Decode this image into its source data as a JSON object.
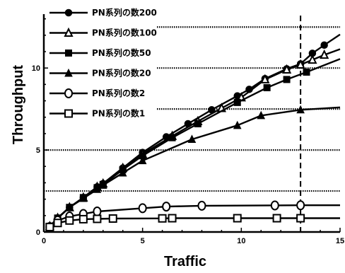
{
  "chart_data": {
    "type": "line",
    "xlabel": "Traffic",
    "ylabel": "Throughput",
    "xlim": [
      0,
      15
    ],
    "ylim": [
      0,
      13.2
    ],
    "x_ticks": [
      "0",
      "5",
      "10",
      "15"
    ],
    "y_ticks": [
      "0",
      "5",
      "10"
    ],
    "reference_line_x": 13,
    "dotted_gridlines_y": [
      2.5,
      5,
      7.5,
      10,
      12.5
    ],
    "legend_position": "top-left",
    "series": [
      {
        "name": "PN系列の数200",
        "marker": "filled-circle",
        "x": [
          0.3,
          0.7,
          1.3,
          2.0,
          2.7,
          3.0,
          4.0,
          5.0,
          6.2,
          7.3,
          8.5,
          9.8,
          10.4,
          11.2,
          12.3,
          13.0,
          13.6,
          14.2,
          15.0
        ],
        "y": [
          0.35,
          0.85,
          1.5,
          2.1,
          2.75,
          2.95,
          3.9,
          4.85,
          5.8,
          6.6,
          7.45,
          8.3,
          8.7,
          9.35,
          9.95,
          10.25,
          10.9,
          11.4,
          12.05
        ]
      },
      {
        "name": "PN系列の数100",
        "marker": "open-triangle",
        "x": [
          0.3,
          0.7,
          1.3,
          2.0,
          2.7,
          3.0,
          4.0,
          5.0,
          6.5,
          7.8,
          9.0,
          10.0,
          11.2,
          12.3,
          13.0,
          13.6,
          14.2,
          15.0
        ],
        "y": [
          0.35,
          0.85,
          1.5,
          2.1,
          2.75,
          2.95,
          3.9,
          4.75,
          5.85,
          6.75,
          7.55,
          8.2,
          9.3,
          9.9,
          10.2,
          10.5,
          10.8,
          11.15
        ]
      },
      {
        "name": "PN系列の数50",
        "marker": "filled-square",
        "x": [
          0.3,
          0.7,
          1.3,
          2.0,
          2.7,
          3.0,
          4.0,
          5.0,
          6.5,
          7.8,
          9.8,
          11.3,
          12.3,
          13.3,
          15.0
        ],
        "y": [
          0.35,
          0.85,
          1.5,
          2.1,
          2.7,
          2.9,
          3.8,
          4.65,
          5.75,
          6.6,
          7.9,
          8.8,
          9.3,
          9.75,
          10.55
        ]
      },
      {
        "name": "PN系列の数20",
        "marker": "filled-triangle",
        "x": [
          0.3,
          0.7,
          1.3,
          2.0,
          2.7,
          3.0,
          4.0,
          5.0,
          7.5,
          9.8,
          11.0,
          13.0,
          15.0
        ],
        "y": [
          0.35,
          0.85,
          1.5,
          2.05,
          2.6,
          2.85,
          3.6,
          4.35,
          5.65,
          6.5,
          7.1,
          7.45,
          7.6
        ]
      },
      {
        "name": "PN系列の数2",
        "marker": "open-circle",
        "x": [
          0.3,
          0.7,
          1.3,
          2.0,
          2.7,
          5.0,
          6.2,
          8.0,
          11.7,
          13.0,
          15.0
        ],
        "y": [
          0.3,
          0.7,
          0.95,
          1.1,
          1.25,
          1.45,
          1.55,
          1.6,
          1.62,
          1.63,
          1.63
        ]
      },
      {
        "name": "PN系列の数1",
        "marker": "open-square",
        "x": [
          0.3,
          0.7,
          1.3,
          2.0,
          2.7,
          3.5,
          6.0,
          6.5,
          9.8,
          11.8,
          13.0,
          15.0
        ],
        "y": [
          0.3,
          0.55,
          0.7,
          0.78,
          0.8,
          0.82,
          0.83,
          0.84,
          0.84,
          0.84,
          0.84,
          0.84
        ]
      }
    ]
  }
}
